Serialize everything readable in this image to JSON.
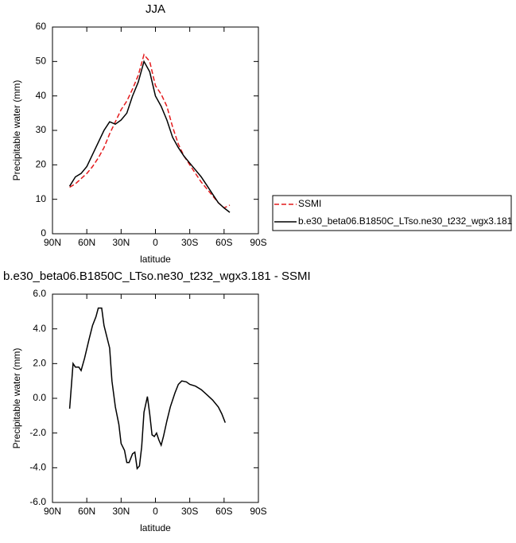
{
  "chart_data": [
    {
      "type": "line",
      "title": "JJA",
      "x_label": "latitude",
      "y_label": "Precipitable water (mm)",
      "x": [
        75,
        70,
        65,
        60,
        55,
        50,
        45,
        40,
        35,
        30,
        25,
        20,
        15,
        10,
        5,
        0,
        -5,
        -10,
        -15,
        -20,
        -25,
        -30,
        -35,
        -40,
        -45,
        -50,
        -55,
        -60,
        -65
      ],
      "series": [
        {
          "name": "SSMI",
          "color": "#e41a1c",
          "dash": true,
          "values": [
            13.5,
            14.5,
            16,
            17.5,
            19.5,
            22,
            25,
            29,
            32.5,
            36,
            38.5,
            42,
            46,
            52,
            50,
            43,
            40.5,
            37,
            31,
            26,
            22.5,
            20,
            17.5,
            15,
            13,
            11,
            9,
            7.5,
            8.3
          ]
        },
        {
          "name": "b.e30_beta06.B1850C_LTso.ne30_t232_wgx3.181",
          "color": "#000000",
          "dash": false,
          "values": [
            13.8,
            16.5,
            17.5,
            19.5,
            23,
            26.5,
            30,
            32.5,
            31.8,
            33,
            35,
            40,
            44,
            50,
            47,
            40,
            37,
            33,
            28,
            25,
            22.5,
            20.5,
            18.5,
            16.5,
            14,
            11.5,
            9,
            7.5,
            6.2
          ]
        }
      ],
      "xlim": [
        90,
        -90
      ],
      "xticks": [
        {
          "value": 90,
          "label": "90N"
        },
        {
          "value": 60,
          "label": "60N"
        },
        {
          "value": 30,
          "label": "30N"
        },
        0,
        {
          "value": -30,
          "label": "30S"
        },
        {
          "value": -60,
          "label": "60S"
        },
        {
          "value": -90,
          "label": "90S"
        }
      ],
      "ylim": [
        0,
        60
      ],
      "yticks": [
        0,
        10,
        20,
        30,
        40,
        50,
        60
      ],
      "legend": "outside-right"
    },
    {
      "type": "line",
      "title": "b.e30_beta06.B1850C_LTso.ne30_t232_wgx3.181 - SSMI",
      "x_label": "latitude",
      "y_label": "Precipitable water (mm)",
      "x": [
        75,
        72,
        70,
        67,
        65,
        62,
        58,
        55,
        52,
        50,
        47,
        45,
        40,
        38,
        35,
        32,
        30,
        27,
        25,
        23,
        20,
        18,
        16,
        14,
        12,
        10,
        7,
        5,
        3,
        1,
        -1,
        -3,
        -5,
        -7,
        -10,
        -13,
        -17,
        -20,
        -23,
        -27,
        -30,
        -35,
        -40,
        -45,
        -50,
        -55,
        -58,
        -61
      ],
      "series": [
        {
          "color": "#000000",
          "dash": false,
          "values": [
            -0.6,
            2.0,
            1.8,
            1.8,
            1.6,
            2.3,
            3.4,
            4.2,
            4.7,
            5.2,
            5.2,
            4.2,
            2.9,
            1.0,
            -0.5,
            -1.5,
            -2.6,
            -3.0,
            -3.7,
            -3.7,
            -3.2,
            -3.1,
            -4.05,
            -3.9,
            -2.8,
            -0.8,
            0.1,
            -0.9,
            -2.1,
            -2.2,
            -2.0,
            -2.4,
            -2.7,
            -2.2,
            -1.3,
            -0.5,
            0.3,
            0.8,
            1.0,
            0.95,
            0.8,
            0.7,
            0.5,
            0.2,
            -0.1,
            -0.5,
            -0.9,
            -1.4
          ]
        }
      ],
      "xlim": [
        90,
        -90
      ],
      "xticks": [
        {
          "value": 90,
          "label": "90N"
        },
        {
          "value": 60,
          "label": "60N"
        },
        {
          "value": 30,
          "label": "30N"
        },
        0,
        {
          "value": -30,
          "label": "30S"
        },
        {
          "value": -60,
          "label": "60S"
        },
        {
          "value": -90,
          "label": "90S"
        }
      ],
      "ylim": [
        -6,
        6
      ],
      "yticks": [
        {
          "value": -6,
          "label": "-6.0"
        },
        {
          "value": -4,
          "label": "-4.0"
        },
        {
          "value": -2,
          "label": "-2.0"
        },
        {
          "value": 0,
          "label": "0.0"
        },
        {
          "value": 2,
          "label": "2.0"
        },
        {
          "value": 4,
          "label": "4.0"
        },
        {
          "value": 6,
          "label": "6.0"
        }
      ]
    }
  ]
}
